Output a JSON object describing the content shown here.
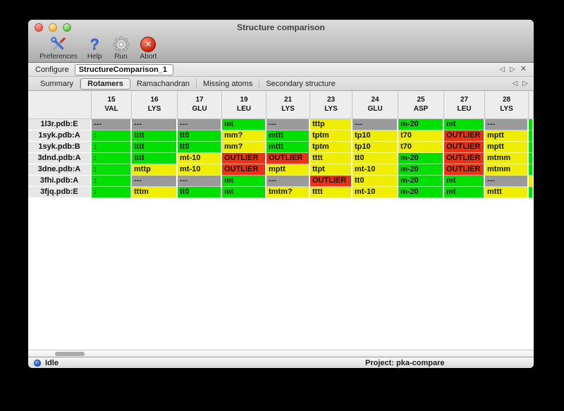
{
  "window": {
    "title": "Structure comparison"
  },
  "toolbar": {
    "items": [
      {
        "label": "Preferences",
        "icon": "tools-icon"
      },
      {
        "label": "Help",
        "icon": "question-icon"
      },
      {
        "label": "Run",
        "icon": "gear-icon"
      },
      {
        "label": "Abort",
        "icon": "abort-icon"
      }
    ]
  },
  "configure": {
    "label": "Configure",
    "value": "StructureComparison_1",
    "nav": {
      "prev": "◁",
      "next": "▷",
      "close": "✕"
    }
  },
  "tabs": {
    "items": [
      "Summary",
      "Rotamers",
      "Ramachandran",
      "Missing atoms",
      "Secondary structure"
    ],
    "selected": "Rotamers",
    "nav": {
      "prev": "◁",
      "next": "▷"
    }
  },
  "colors": {
    "ok": "#00e000",
    "warn": "#f0ee00",
    "outlier": "#f13012",
    "missing": "#9a9a9a"
  },
  "table": {
    "columns": [
      {
        "num": "15",
        "res": "VAL"
      },
      {
        "num": "16",
        "res": "LYS"
      },
      {
        "num": "17",
        "res": "GLU"
      },
      {
        "num": "19",
        "res": "LEU"
      },
      {
        "num": "21",
        "res": "LYS"
      },
      {
        "num": "23",
        "res": "LYS"
      },
      {
        "num": "24",
        "res": "GLU"
      },
      {
        "num": "25",
        "res": "ASP"
      },
      {
        "num": "27",
        "res": "LEU"
      },
      {
        "num": "28",
        "res": "LYS"
      },
      {
        "num": "",
        "res": ""
      }
    ],
    "rows": [
      {
        "label": "1l3r.pdb:E",
        "cells": [
          {
            "text": "---",
            "status": "missing"
          },
          {
            "text": "---",
            "status": "missing"
          },
          {
            "text": "---",
            "status": "missing"
          },
          {
            "text": "mt",
            "status": "ok"
          },
          {
            "text": "---",
            "status": "missing"
          },
          {
            "text": "tttp",
            "status": "warn"
          },
          {
            "text": "---",
            "status": "missing"
          },
          {
            "text": "m-20",
            "status": "ok"
          },
          {
            "text": "mt",
            "status": "ok"
          },
          {
            "text": "---",
            "status": "missing"
          },
          {
            "text": "",
            "status": "ok"
          }
        ]
      },
      {
        "label": "1syk.pdb:A",
        "cells": [
          {
            "text": ":",
            "status": "ok"
          },
          {
            "text": "tttt",
            "status": "ok"
          },
          {
            "text": "tt0",
            "status": "ok"
          },
          {
            "text": "mm?",
            "status": "warn"
          },
          {
            "text": "mttt",
            "status": "ok"
          },
          {
            "text": "tptm",
            "status": "warn"
          },
          {
            "text": "tp10",
            "status": "warn"
          },
          {
            "text": "t70",
            "status": "warn"
          },
          {
            "text": "OUTLIER",
            "status": "outlier"
          },
          {
            "text": "mptt",
            "status": "warn"
          },
          {
            "text": "",
            "status": "ok"
          }
        ]
      },
      {
        "label": "1syk.pdb:B",
        "cells": [
          {
            "text": ":",
            "status": "ok"
          },
          {
            "text": "tttt",
            "status": "ok"
          },
          {
            "text": "tt0",
            "status": "ok"
          },
          {
            "text": "mm?",
            "status": "warn"
          },
          {
            "text": "mttt",
            "status": "ok"
          },
          {
            "text": "tptm",
            "status": "warn"
          },
          {
            "text": "tp10",
            "status": "warn"
          },
          {
            "text": "t70",
            "status": "warn"
          },
          {
            "text": "OUTLIER",
            "status": "outlier"
          },
          {
            "text": "mptt",
            "status": "warn"
          },
          {
            "text": "",
            "status": "ok"
          }
        ]
      },
      {
        "label": "3dnd.pdb:A",
        "cells": [
          {
            "text": ":",
            "status": "ok"
          },
          {
            "text": "tttt",
            "status": "ok"
          },
          {
            "text": "mt-10",
            "status": "warn"
          },
          {
            "text": "OUTLIER",
            "status": "outlier"
          },
          {
            "text": "OUTLIER",
            "status": "outlier"
          },
          {
            "text": "tttt",
            "status": "warn"
          },
          {
            "text": "tt0",
            "status": "warn"
          },
          {
            "text": "m-20",
            "status": "ok"
          },
          {
            "text": "OUTLIER",
            "status": "outlier"
          },
          {
            "text": "mtmm",
            "status": "warn"
          },
          {
            "text": "",
            "status": "ok"
          }
        ]
      },
      {
        "label": "3dne.pdb:A",
        "cells": [
          {
            "text": ":",
            "status": "ok"
          },
          {
            "text": "mttp",
            "status": "warn"
          },
          {
            "text": "mt-10",
            "status": "warn"
          },
          {
            "text": "OUTLIER",
            "status": "outlier"
          },
          {
            "text": "mptt",
            "status": "warn"
          },
          {
            "text": "ttpt",
            "status": "warn"
          },
          {
            "text": "mt-10",
            "status": "warn"
          },
          {
            "text": "m-20",
            "status": "ok"
          },
          {
            "text": "OUTLIER",
            "status": "outlier"
          },
          {
            "text": "mtmm",
            "status": "warn"
          },
          {
            "text": "",
            "status": "ok"
          }
        ]
      },
      {
        "label": "3fhi.pdb:A",
        "cells": [
          {
            "text": ":",
            "status": "ok"
          },
          {
            "text": "---",
            "status": "missing"
          },
          {
            "text": "---",
            "status": "missing"
          },
          {
            "text": "mt",
            "status": "ok"
          },
          {
            "text": "---",
            "status": "missing"
          },
          {
            "text": "OUTLIER",
            "status": "outlier"
          },
          {
            "text": "tt0",
            "status": "warn"
          },
          {
            "text": "m-20",
            "status": "ok"
          },
          {
            "text": "mt",
            "status": "ok"
          },
          {
            "text": "---",
            "status": "missing"
          },
          {
            "text": "",
            "status": "warn"
          }
        ]
      },
      {
        "label": "3fjq.pdb:E",
        "cells": [
          {
            "text": ":",
            "status": "ok"
          },
          {
            "text": "tttm",
            "status": "warn"
          },
          {
            "text": "tt0",
            "status": "ok"
          },
          {
            "text": "mt",
            "status": "ok"
          },
          {
            "text": "tmtm?",
            "status": "warn"
          },
          {
            "text": "tttt",
            "status": "warn"
          },
          {
            "text": "mt-10",
            "status": "warn"
          },
          {
            "text": "m-20",
            "status": "ok"
          },
          {
            "text": "mt",
            "status": "ok"
          },
          {
            "text": "mttt",
            "status": "warn"
          },
          {
            "text": "",
            "status": "ok"
          }
        ]
      }
    ]
  },
  "status_bar": {
    "state": "Idle",
    "project": "Project: pka-compare"
  }
}
